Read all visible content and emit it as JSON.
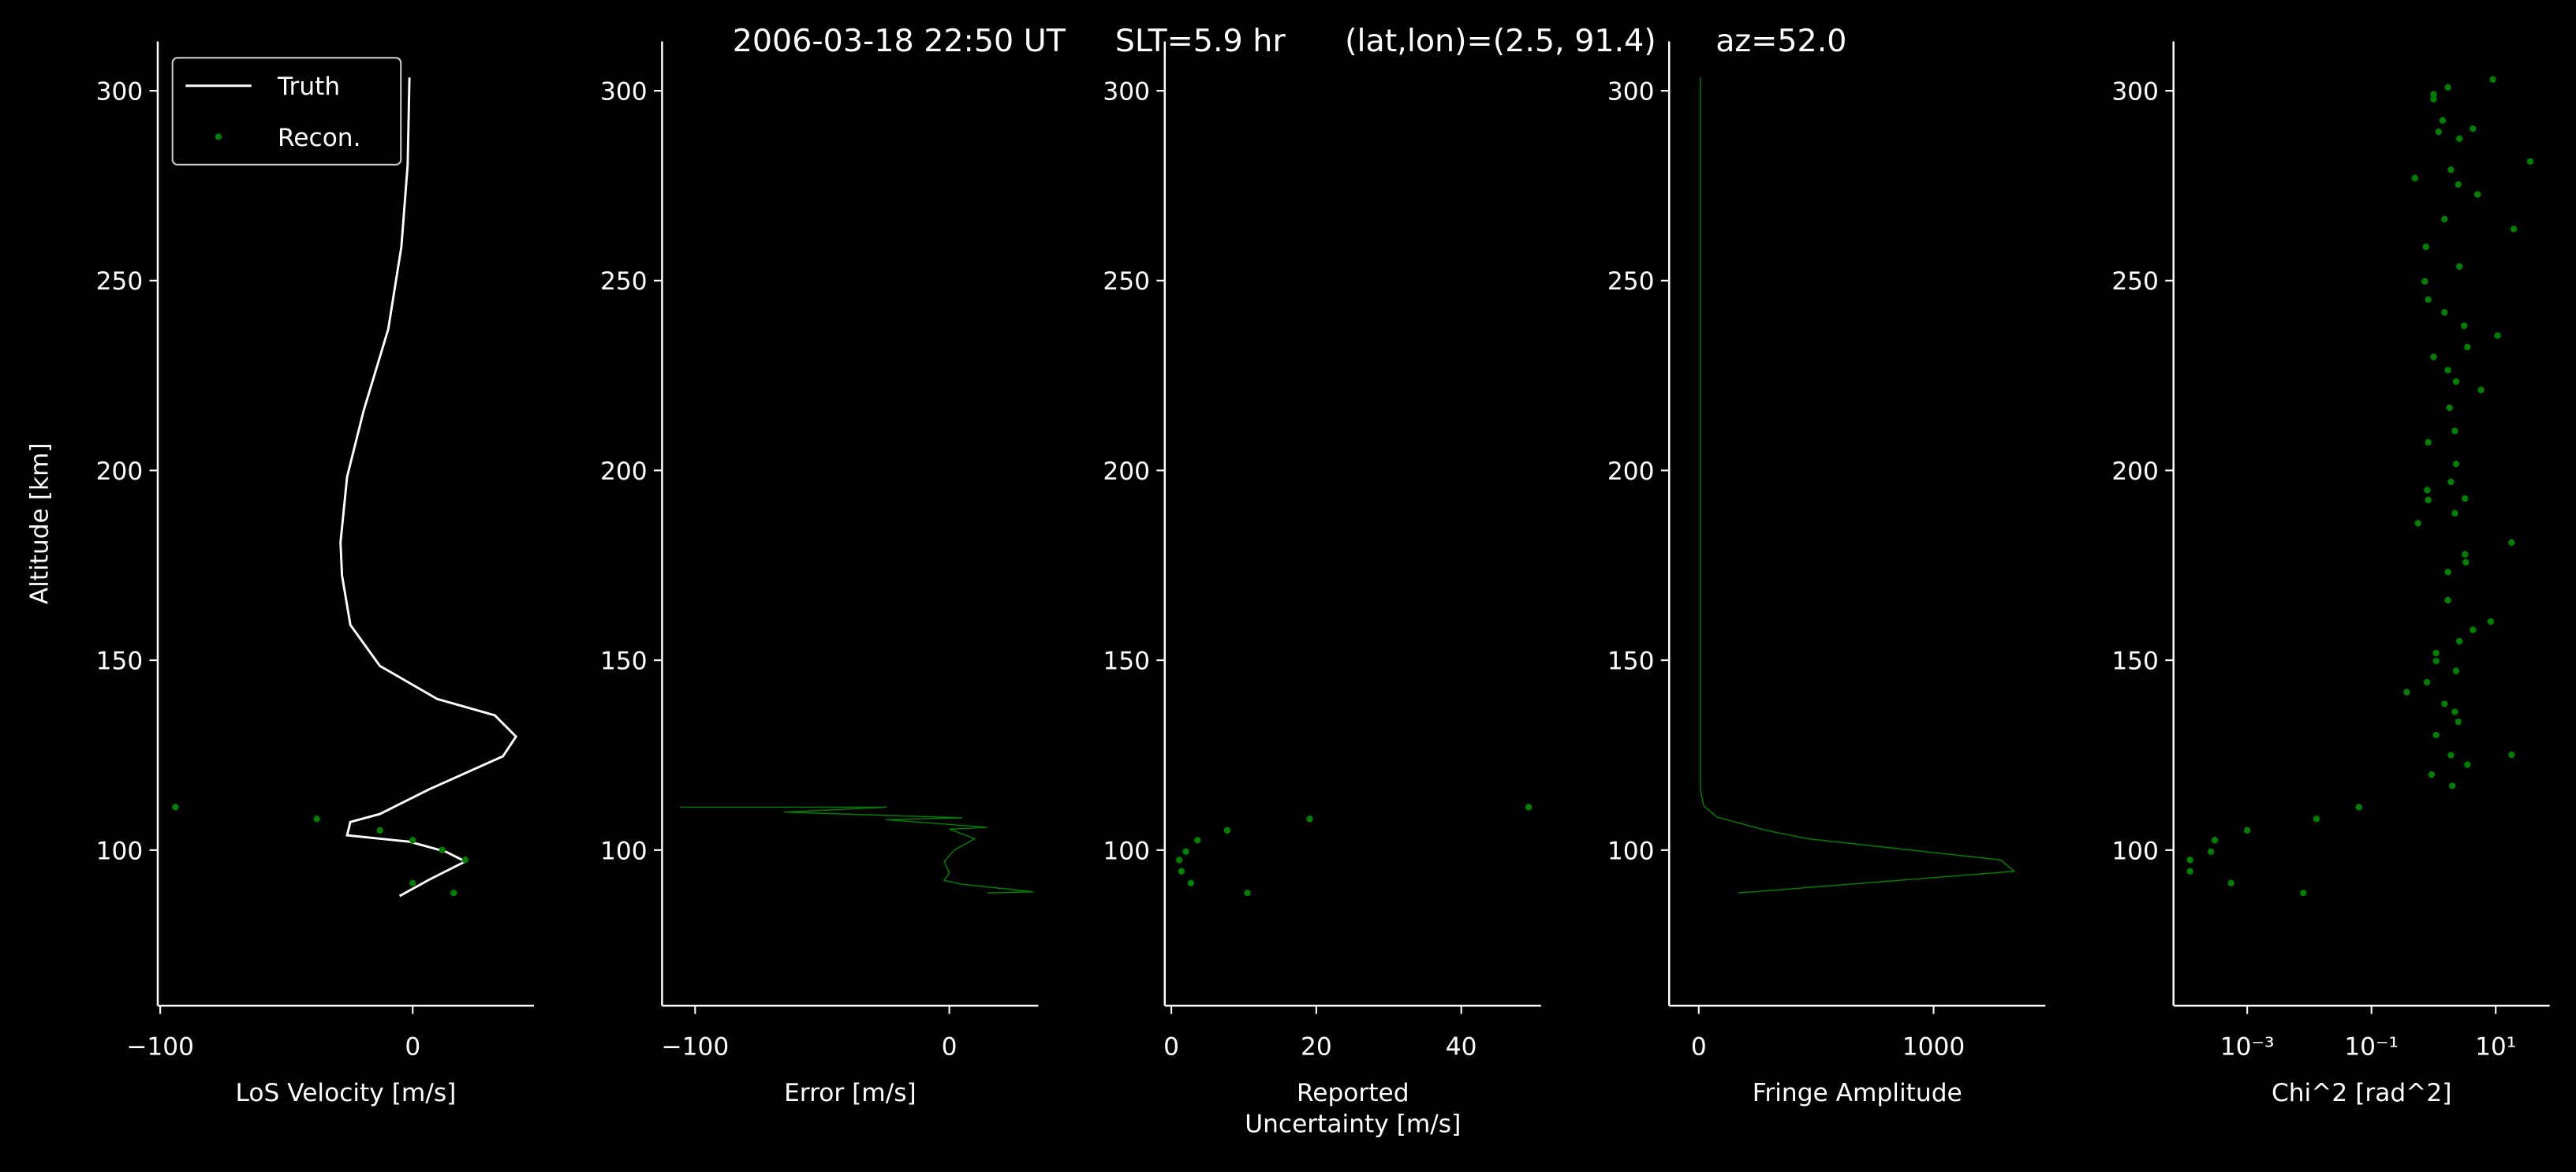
{
  "title": "2006-03-18 22:50 UT     SLT=5.9 hr      (lat,lon)=(2.5, 91.4)      az=52.0",
  "chart_data": [
    {
      "type": "line",
      "xlabel": "LoS Velocity [m/s]",
      "ylabel": "Altitude [km]",
      "legend": "upper left",
      "xlim": [
        -101,
        48
      ],
      "ylim": [
        59,
        313
      ],
      "xticks": [
        {
          "value": -100,
          "label": "−100"
        },
        0
      ],
      "yticks": [
        100,
        150,
        200,
        250,
        300
      ],
      "series": [
        {
          "name": "Truth",
          "color": "#ffffff",
          "style": "line",
          "x": [
            -1.3,
            -2,
            -4.5,
            -9.7,
            -19.5,
            -26,
            -28.6,
            -28,
            -24.7,
            -13,
            9.7,
            32.5,
            40.9,
            35.7,
            6.5,
            -13,
            -24.7,
            -26,
            -1.3,
            13,
            20.8,
            6.5,
            -5.2
          ],
          "y": [
            303.5,
            280.5,
            258.9,
            237.2,
            215.6,
            198.3,
            181,
            172.3,
            159.3,
            148.5,
            139.8,
            135.5,
            129.9,
            124.7,
            116,
            109.5,
            107.4,
            103.9,
            102.2,
            99.6,
            97,
            92.2,
            87.9
          ]
        },
        {
          "name": "Recon.",
          "color": "#008000",
          "style": "points",
          "x": [
            -94,
            -38,
            -13,
            0,
            11.7,
            20.8,
            0,
            16.2
          ],
          "y": [
            111.3,
            108.2,
            105.2,
            102.6,
            100,
            97.4,
            91.3,
            88.7
          ]
        }
      ]
    },
    {
      "type": "line",
      "xlabel": "Error [m/s]",
      "xlim": [
        -113,
        35
      ],
      "ylim": [
        59,
        313
      ],
      "xticks": [
        {
          "value": -100,
          "label": "−100"
        },
        0
      ],
      "yticks": [
        100,
        150,
        200,
        250,
        300
      ],
      "series": [
        {
          "color": "#008000",
          "style": "line",
          "x": [
            -106,
            -24.5,
            -65,
            5,
            -25,
            15,
            0,
            10,
            2,
            -2,
            0,
            -2,
            5,
            33,
            15
          ],
          "y": [
            111.3,
            111.3,
            110,
            108.5,
            108,
            106,
            105.5,
            103,
            100,
            97,
            94,
            92,
            91,
            89,
            88.7
          ]
        }
      ]
    },
    {
      "type": "scatter",
      "xlabel": "Reported\nUncertainty [m/s]",
      "xlim": [
        -0.9,
        51
      ],
      "ylim": [
        59,
        313
      ],
      "xticks": [
        0,
        20,
        40
      ],
      "yticks": [
        100,
        150,
        200,
        250,
        300
      ],
      "series": [
        {
          "color": "#008000",
          "style": "points",
          "x": [
            49.3,
            19.1,
            7.7,
            3.6,
            2,
            1.1,
            1.4,
            2.7,
            10.5
          ],
          "y": [
            111.3,
            108.2,
            105.2,
            102.6,
            99.6,
            97.4,
            94.4,
            91.3,
            88.7
          ]
        }
      ]
    },
    {
      "type": "line",
      "xlabel": "Fringe Amplitude",
      "xlim": [
        -126,
        1476
      ],
      "ylim": [
        59,
        313
      ],
      "xticks": [
        0,
        1000
      ],
      "yticks": [
        100,
        150,
        200,
        250,
        300
      ],
      "series": [
        {
          "color": "#008000",
          "style": "line",
          "x": [
            7,
            7,
            21,
            77,
            287,
            462,
            1287,
            1343,
            168
          ],
          "y": [
            303.5,
            116,
            111.7,
            108.7,
            105.2,
            103,
            97.4,
            94.4,
            88.7
          ]
        }
      ]
    },
    {
      "type": "scatter",
      "xlabel": "Chi^2 [rad^2]",
      "xscale": "log",
      "xlim": [
        6.5e-05,
        74
      ],
      "ylim": [
        59,
        313
      ],
      "xticks": [
        {
          "value": 0.001,
          "label": "10⁻³"
        },
        {
          "value": 0.1,
          "label": "10⁻¹"
        },
        {
          "value": 10,
          "label": "10¹"
        }
      ],
      "yticks": [
        100,
        150,
        200,
        250,
        300
      ],
      "series": [
        {
          "color": "#008000",
          "style": "points",
          "x": [
            0.00012,
            0.00012,
            0.00026,
            0.0003,
            0.00055,
            0.001,
            0.008,
            0.013,
            0.063,
            1.9,
            18,
            2.0,
            0.93,
            3.5,
            1.1,
            2.5,
            2.2,
            1.5,
            0.37,
            2.3,
            0.78,
            1.1,
            1.1,
            8.3,
            4.3,
            2.6,
            18,
            1.7,
            3.3,
            1.7,
            3.2,
            0.56,
            2.2,
            0.82,
            3.2,
            1.9,
            0.79,
            2.3,
            0.82,
            2.2,
            1.8,
            5.8,
            2.3,
            1.7,
            10.7,
            3.5,
            1.0,
            3.1,
            1.5,
            0.82,
            0.72,
            2.6,
            0.75,
            19.5,
            1.5,
            5.1,
            2.5,
            0.5,
            1.9,
            36,
            2.6,
            1.2,
            4.3,
            1.4,
            1.0,
            1.0,
            9.0,
            1.7
          ],
          "y": [
            97.4,
            94.4,
            99.6,
            102.6,
            91.3,
            105.2,
            88.7,
            108.2,
            111.3,
            125,
            125.1,
            116.9,
            119.9,
            122.5,
            130.3,
            133.8,
            136.4,
            138.5,
            141.6,
            147.2,
            144.2,
            149.8,
            151.9,
            160.2,
            158,
            155,
            181,
            165.8,
            175.8,
            173.2,
            177.9,
            186.1,
            188.7,
            192.2,
            192.6,
            197,
            194.8,
            201.7,
            207.4,
            210.4,
            216.5,
            221.2,
            223.4,
            226.4,
            235.5,
            232.5,
            229.9,
            238.1,
            241.6,
            245,
            249.8,
            253.7,
            258.9,
            263.6,
            266.2,
            272.7,
            275.3,
            277,
            279.2,
            281.4,
            287.4,
            289.2,
            290,
            292.2,
            297.8,
            299.1,
            303,
            300.9
          ]
        }
      ]
    }
  ]
}
